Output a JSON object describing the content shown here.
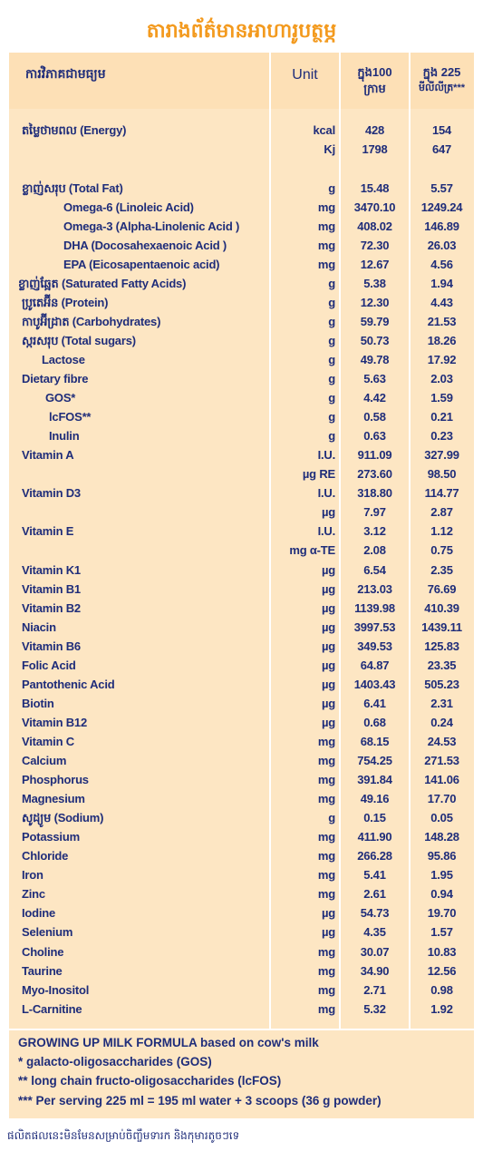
{
  "header": {
    "title": "តារាងព័ត៌មានអាហារូបត្ថម្ភ"
  },
  "table": {
    "columns": [
      "ការវិភាគជាមធ្យម",
      "Unit",
      [
        "ក្នុង100",
        "ក្រាម"
      ],
      [
        "ក្នុង 225",
        "មីលីលីត្រ***"
      ]
    ],
    "rows": [
      {
        "name": "តម្លៃថាមពល (Energy)",
        "unit": "kcal",
        "per_100g": "428",
        "per_225ml": "154"
      },
      {
        "unit": "Kj",
        "per_100g": "1798",
        "per_225ml": "647"
      },
      {
        "name": "ខ្លាញ់សរុប (Total Fat)",
        "unit": "g",
        "per_100g": "15.48",
        "per_225ml": "5.57"
      },
      {
        "name": "Omega-6 (Linoleic Acid)",
        "unit": "mg",
        "per_100g": "3470.10",
        "per_225ml": "1249.24"
      },
      {
        "name": "Omega-3 (Alpha-Linolenic Acid )",
        "unit": "mg",
        "per_100g": "408.02",
        "per_225ml": "146.89"
      },
      {
        "name": "DHA (Docosahexaenoic Acid )",
        "unit": "mg",
        "per_100g": "72.30",
        "per_225ml": "26.03"
      },
      {
        "name": "EPA (Eicosapentaenoic acid)",
        "unit": "mg",
        "per_100g": "12.67",
        "per_225ml": "4.56"
      },
      {
        "name": "ខ្លាញ់ឆ្អែត (Saturated Fatty Acids)",
        "unit": "g",
        "per_100g": "5.38",
        "per_225ml": "1.94"
      },
      {
        "name": "ប្រូតេអ៊ីន (Protein)",
        "unit": "g",
        "per_100g": "12.30",
        "per_225ml": "4.43"
      },
      {
        "name": "កាបូអ៊ីដ្រាត (Carbohydrates)",
        "unit": "g",
        "per_100g": "59.79",
        "per_225ml": "21.53"
      },
      {
        "name": "ស្ករសរុប (Total sugars)",
        "unit": "g",
        "per_100g": "50.73",
        "per_225ml": "18.26"
      },
      {
        "name": "Lactose",
        "unit": "g",
        "per_100g": "49.78",
        "per_225ml": "17.92"
      },
      {
        "name": "Dietary fibre",
        "unit": "g",
        "per_100g": "5.63",
        "per_225ml": "2.03"
      },
      {
        "name": "GOS*",
        "unit": "g",
        "per_100g": "4.42",
        "per_225ml": "1.59"
      },
      {
        "name": "lcFOS**",
        "unit": "g",
        "per_100g": "0.58",
        "per_225ml": "0.21"
      },
      {
        "name": "Inulin",
        "unit": "g",
        "per_100g": "0.63",
        "per_225ml": "0.23"
      },
      {
        "name": "Vitamin A",
        "unit": "I.U.",
        "per_100g": "911.09",
        "per_225ml": "327.99"
      },
      {
        "unit": "µg RE",
        "per_100g": "273.60",
        "per_225ml": "98.50"
      },
      {
        "name": "Vitamin D3",
        "unit": "I.U.",
        "per_100g": "318.80",
        "per_225ml": "114.77"
      },
      {
        "unit": "µg",
        "per_100g": "7.97",
        "per_225ml": "2.87"
      },
      {
        "name": "Vitamin E",
        "unit": "I.U.",
        "per_100g": "3.12",
        "per_225ml": "1.12"
      },
      {
        "unit": "mg α-TE",
        "per_100g": "2.08",
        "per_225ml": "0.75"
      },
      {
        "name": "Vitamin K1",
        "unit": "µg",
        "per_100g": "6.54",
        "per_225ml": "2.35"
      },
      {
        "name": "Vitamin B1",
        "unit": "µg",
        "per_100g": "213.03",
        "per_225ml": "76.69"
      },
      {
        "name": "Vitamin B2",
        "unit": "µg",
        "per_100g": "1139.98",
        "per_225ml": "410.39"
      },
      {
        "name": "Niacin",
        "unit": "µg",
        "per_100g": "3997.53",
        "per_225ml": "1439.11"
      },
      {
        "name": "Vitamin B6",
        "unit": "µg",
        "per_100g": "349.53",
        "per_225ml": "125.83"
      },
      {
        "name": "Folic Acid",
        "unit": "µg",
        "per_100g": "64.87",
        "per_225ml": "23.35"
      },
      {
        "name": "Pantothenic Acid",
        "unit": "µg",
        "per_100g": "1403.43",
        "per_225ml": "505.23"
      },
      {
        "name": "Biotin",
        "unit": "µg",
        "per_100g": "6.41",
        "per_225ml": "2.31"
      },
      {
        "name": "Vitamin B12",
        "unit": "µg",
        "per_100g": "0.68",
        "per_225ml": "0.24"
      },
      {
        "name": "Vitamin C",
        "unit": "mg",
        "per_100g": "68.15",
        "per_225ml": "24.53"
      },
      {
        "name": "Calcium",
        "unit": "mg",
        "per_100g": "754.25",
        "per_225ml": "271.53"
      },
      {
        "name": "Phosphorus",
        "unit": "mg",
        "per_100g": "391.84",
        "per_225ml": "141.06"
      },
      {
        "name": "Magnesium",
        "unit": "mg",
        "per_100g": "49.16",
        "per_225ml": "17.70"
      },
      {
        "name": "សូដ្យូម (Sodium)",
        "unit": "g",
        "per_100g": "0.15",
        "per_225ml": "0.05"
      },
      {
        "name": "Potassium",
        "unit": "mg",
        "per_100g": "411.90",
        "per_225ml": "148.28"
      },
      {
        "name": "Chloride",
        "unit": "mg",
        "per_100g": "266.28",
        "per_225ml": "95.86"
      },
      {
        "name": "Iron",
        "unit": "mg",
        "per_100g": "5.41",
        "per_225ml": "1.95"
      },
      {
        "name": "Zinc",
        "unit": "mg",
        "per_100g": "2.61",
        "per_225ml": "0.94"
      },
      {
        "name": "Iodine",
        "unit": "µg",
        "per_100g": "54.73",
        "per_225ml": "19.70"
      },
      {
        "name": "Selenium",
        "unit": "µg",
        "per_100g": "4.35",
        "per_225ml": "1.57"
      },
      {
        "name": "Choline",
        "unit": "mg",
        "per_100g": "30.07",
        "per_225ml": "10.83"
      },
      {
        "name": "Taurine",
        "unit": "mg",
        "per_100g": "34.90",
        "per_225ml": "12.56"
      },
      {
        "name": "Myo-Inositol",
        "unit": "mg",
        "per_100g": "2.71",
        "per_225ml": "0.98"
      },
      {
        "name": "L-Carnitine",
        "unit": "mg",
        "per_100g": "5.32",
        "per_225ml": "1.92"
      }
    ]
  },
  "footer": {
    "notes": [
      "GROWING UP MILK FORMULA based on cow's milk",
      "* galacto-oligosaccharides (GOS)",
      "** long chain fructo-oligosaccharides (lcFOS)",
      "*** Per serving 225 ml = 195 ml water + 3 scoops (36 g powder)"
    ],
    "disclaimer": "ផលិតផលនេះមិនមែនសម្រាប់ចិញ្ចឹមទារក និងកុមារតូចៗទេ"
  }
}
